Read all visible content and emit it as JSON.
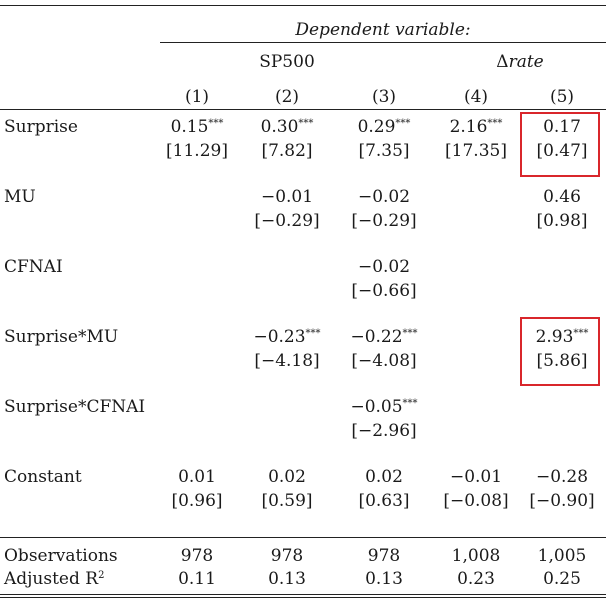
{
  "header": {
    "dependent_variable": "Dependent variable:",
    "group_sp500": "SP500",
    "group_rate_prefix": "Δ",
    "group_rate_italic": "rate",
    "columns": [
      "(1)",
      "(2)",
      "(3)",
      "(4)",
      "(5)"
    ]
  },
  "rows": [
    {
      "label": "Surprise",
      "cells": [
        {
          "coef": "0.15",
          "stars": "***",
          "t": "[11.29]"
        },
        {
          "coef": "0.30",
          "stars": "***",
          "t": "[7.82]"
        },
        {
          "coef": "0.29",
          "stars": "***",
          "t": "[7.35]"
        },
        {
          "coef": "2.16",
          "stars": "***",
          "t": "[17.35]"
        },
        {
          "coef": "0.17",
          "stars": "",
          "t": "[0.47]"
        }
      ]
    },
    {
      "label": "MU",
      "cells": [
        {
          "coef": "",
          "stars": "",
          "t": ""
        },
        {
          "coef": "−0.01",
          "stars": "",
          "t": "[−0.29]"
        },
        {
          "coef": "−0.02",
          "stars": "",
          "t": "[−0.29]"
        },
        {
          "coef": "",
          "stars": "",
          "t": ""
        },
        {
          "coef": "0.46",
          "stars": "",
          "t": "[0.98]"
        }
      ]
    },
    {
      "label": "CFNAI",
      "cells": [
        {
          "coef": "",
          "stars": "",
          "t": ""
        },
        {
          "coef": "",
          "stars": "",
          "t": ""
        },
        {
          "coef": "−0.02",
          "stars": "",
          "t": "[−0.66]"
        },
        {
          "coef": "",
          "stars": "",
          "t": ""
        },
        {
          "coef": "",
          "stars": "",
          "t": ""
        }
      ]
    },
    {
      "label": "Surprise*MU",
      "cells": [
        {
          "coef": "",
          "stars": "",
          "t": ""
        },
        {
          "coef": "−0.23",
          "stars": "***",
          "t": "[−4.18]"
        },
        {
          "coef": "−0.22",
          "stars": "***",
          "t": "[−4.08]"
        },
        {
          "coef": "",
          "stars": "",
          "t": ""
        },
        {
          "coef": "2.93",
          "stars": "***",
          "t": "[5.86]"
        }
      ]
    },
    {
      "label": "Surprise*CFNAI",
      "cells": [
        {
          "coef": "",
          "stars": "",
          "t": ""
        },
        {
          "coef": "",
          "stars": "",
          "t": ""
        },
        {
          "coef": "−0.05",
          "stars": "***",
          "t": "[−2.96]"
        },
        {
          "coef": "",
          "stars": "",
          "t": ""
        },
        {
          "coef": "",
          "stars": "",
          "t": ""
        }
      ]
    },
    {
      "label": "Constant",
      "cells": [
        {
          "coef": "0.01",
          "stars": "",
          "t": "[0.96]"
        },
        {
          "coef": "0.02",
          "stars": "",
          "t": "[0.59]"
        },
        {
          "coef": "0.02",
          "stars": "",
          "t": "[0.63]"
        },
        {
          "coef": "−0.01",
          "stars": "",
          "t": "[−0.08]"
        },
        {
          "coef": "−0.28",
          "stars": "",
          "t": "[−0.90]"
        }
      ]
    }
  ],
  "stats": [
    {
      "label": "Observations",
      "values": [
        "978",
        "978",
        "978",
        "1,008",
        "1,005"
      ]
    },
    {
      "label": "Adjusted R",
      "label_sup": "2",
      "values": [
        "0.11",
        "0.13",
        "0.13",
        "0.23",
        "0.25"
      ]
    }
  ],
  "highlight_color": "#d9262b"
}
